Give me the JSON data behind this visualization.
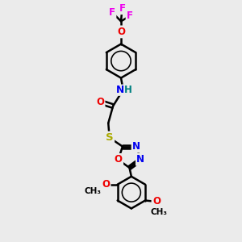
{
  "bg_color": "#ebebeb",
  "bond_color": "#000000",
  "bond_width": 1.8,
  "atom_colors": {
    "C": "#000000",
    "N": "#0000ee",
    "O": "#ee0000",
    "S": "#aaaa00",
    "F": "#ee00ee",
    "H": "#008080"
  },
  "font_size": 8.5,
  "fig_size": [
    3.0,
    3.0
  ],
  "dpi": 100
}
